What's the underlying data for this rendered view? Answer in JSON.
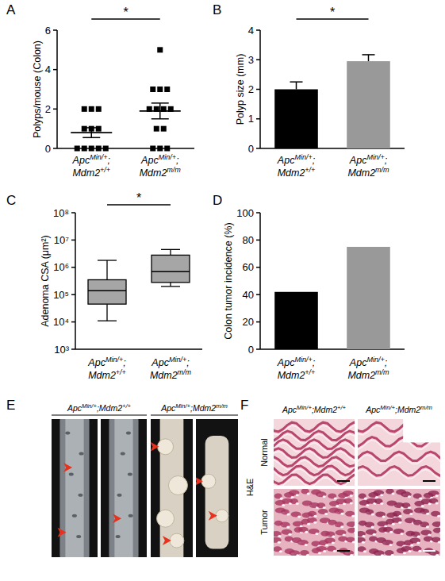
{
  "chart_data": [
    {
      "panel": "A",
      "type": "dotplot",
      "categories": [
        "ApcMin/+; Mdm2+/+",
        "ApcMin/+; Mdm2m/m"
      ],
      "y_label": "Polyps/mouse (Colon)",
      "values": [
        [
          2,
          2,
          2,
          1,
          1,
          1,
          0,
          0,
          0,
          0,
          0
        ],
        [
          5,
          3,
          3,
          3,
          2,
          2,
          2,
          2,
          1,
          1,
          0,
          0,
          0
        ]
      ],
      "mean": [
        0.8,
        1.9
      ],
      "sem": [
        0.25,
        0.4
      ],
      "color": "#000000",
      "marker": "square",
      "ylim": [
        0,
        6
      ],
      "yticks": [
        0,
        2,
        4,
        6
      ],
      "annotations": [
        "*"
      ]
    },
    {
      "panel": "B",
      "type": "bar",
      "categories": [
        "ApcMin/+; Mdm2+/+",
        "ApcMin/+; Mdm2m/m"
      ],
      "y_label": "Polyp size (mm)",
      "values": [
        2.0,
        2.95
      ],
      "errors": [
        0.25,
        0.22
      ],
      "colors": [
        "#000000",
        "#999999"
      ],
      "ylim": [
        0,
        4
      ],
      "yticks": [
        0,
        1,
        2,
        3,
        4
      ],
      "annotations": [
        "*"
      ]
    },
    {
      "panel": "C",
      "type": "box",
      "log": "y",
      "categories": [
        "ApcMin/+; Mdm2+/+",
        "ApcMin/+; Mdm2m/m"
      ],
      "y_label": "Adenoma CSA (μm²)",
      "whisker_low": [
        11000,
        200000
      ],
      "q1": [
        45000,
        280000
      ],
      "median": [
        140000,
        700000
      ],
      "q3": [
        350000,
        2800000
      ],
      "whisker_high": [
        1800000,
        4500000
      ],
      "color": "#a6a6a6",
      "ylim": [
        1000,
        100000000
      ],
      "yticks": [
        {
          "value": 1000,
          "label": "10³"
        },
        {
          "value": 10000,
          "label": "10⁴"
        },
        {
          "value": 100000,
          "label": "10⁵"
        },
        {
          "value": 1000000,
          "label": "10⁶"
        },
        {
          "value": 10000000,
          "label": "10⁷"
        },
        {
          "value": 100000000,
          "label": "10⁸"
        }
      ],
      "annotations": [
        "*"
      ]
    },
    {
      "panel": "D",
      "type": "bar",
      "categories": [
        "ApcMin/+; Mdm2+/+",
        "ApcMin/+; Mdm2m/m"
      ],
      "y_label": "Colon tumor incidence (%)",
      "values": [
        42,
        75
      ],
      "colors": [
        "#000000",
        "#999999"
      ],
      "ylim": [
        0,
        100
      ],
      "yticks": [
        0,
        20,
        40,
        60,
        80,
        100
      ]
    }
  ],
  "figures": [
    {
      "panel": "E",
      "type": "photo",
      "groups": [
        "ApcMin/+;Mdm2+/+",
        "ApcMin/+;Mdm2m/m"
      ]
    },
    {
      "panel": "F",
      "type": "histology",
      "groups": [
        "ApcMin/+;Mdm2+/+",
        "ApcMin/+;Mdm2m/m"
      ],
      "rows": [
        "Normal",
        "Tumor"
      ],
      "stain": "H&E"
    }
  ]
}
